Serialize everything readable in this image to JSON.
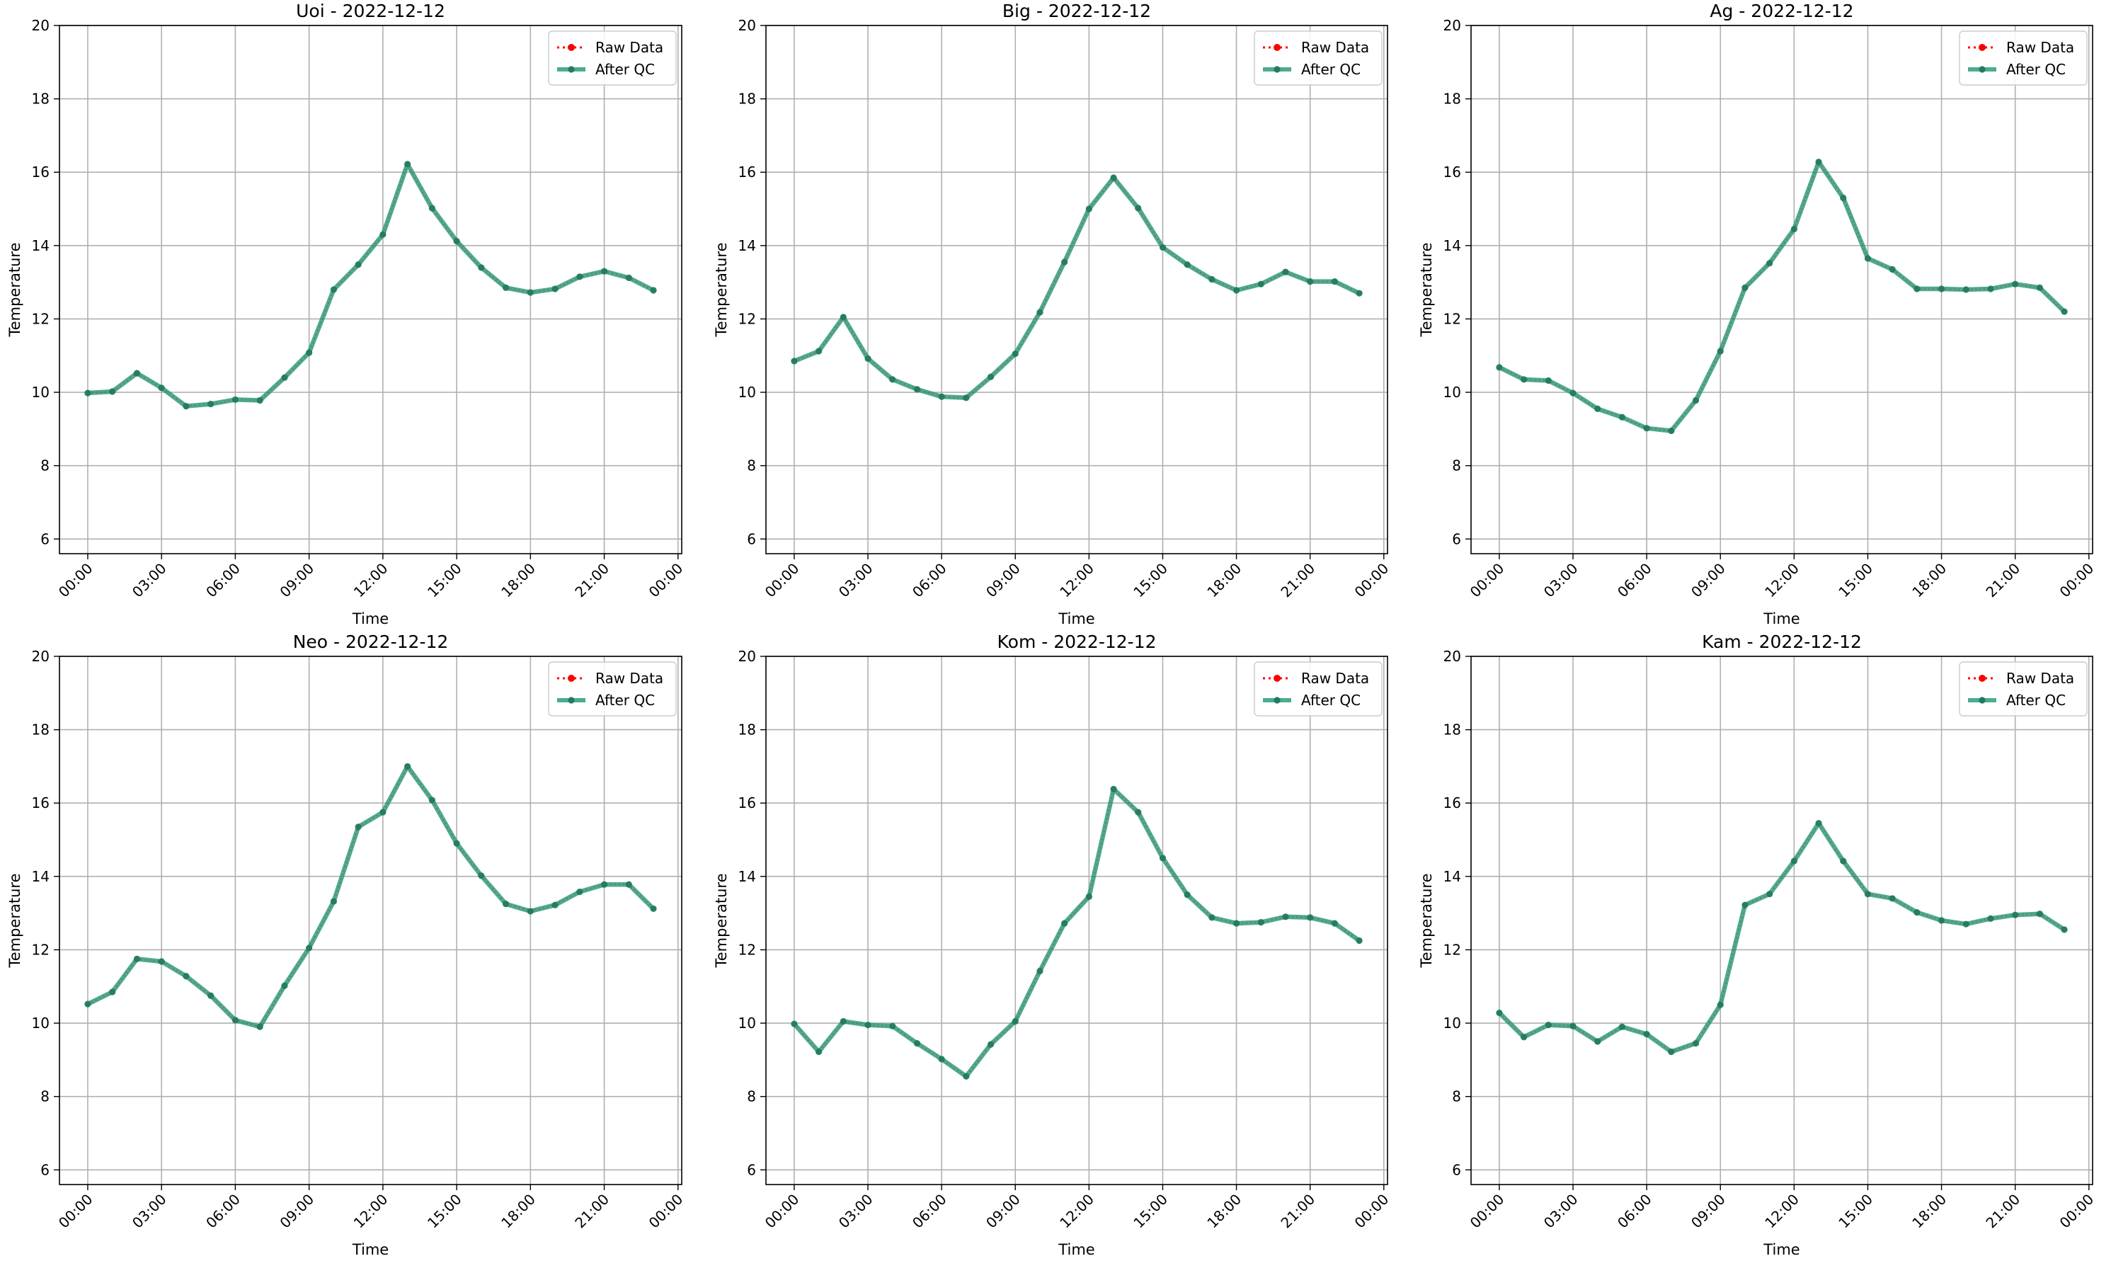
{
  "figure": {
    "background": "#ffffff"
  },
  "styles": {
    "raw_color": "#ff0000",
    "qc_color": "#2a9d7c",
    "qc_marker_color": "#237a62",
    "grid_color": "#b0b0b0"
  },
  "chart_data": [
    {
      "type": "line",
      "title": "Uoi - 2022-12-12",
      "xlabel": "Time",
      "ylabel": "Temperature",
      "ylim": [
        5.6,
        20
      ],
      "yticks": [
        6,
        8,
        10,
        12,
        14,
        16,
        18,
        20
      ],
      "xticks": [
        "00:00",
        "03:00",
        "06:00",
        "09:00",
        "12:00",
        "15:00",
        "18:00",
        "21:00",
        "00:00"
      ],
      "grid": true,
      "legend": "top-right",
      "x": [
        "00:00",
        "01:00",
        "02:00",
        "03:00",
        "04:00",
        "05:00",
        "06:00",
        "07:00",
        "08:00",
        "09:00",
        "10:00",
        "11:00",
        "12:00",
        "13:00",
        "14:00",
        "15:00",
        "16:00",
        "17:00",
        "18:00",
        "19:00",
        "20:00",
        "21:00",
        "22:00",
        "23:00"
      ],
      "series": [
        {
          "name": "Raw Data",
          "values": [
            9.98,
            10.02,
            10.52,
            10.12,
            9.62,
            9.68,
            9.8,
            9.78,
            10.4,
            11.08,
            12.8,
            13.48,
            14.3,
            16.22,
            15.02,
            14.12,
            13.4,
            12.85,
            12.72,
            12.82,
            13.15,
            13.3,
            13.12,
            12.78
          ]
        },
        {
          "name": "After QC",
          "values": [
            9.98,
            10.02,
            10.52,
            10.12,
            9.62,
            9.68,
            9.8,
            9.78,
            10.4,
            11.08,
            12.8,
            13.48,
            14.3,
            16.22,
            15.02,
            14.12,
            13.4,
            12.85,
            12.72,
            12.82,
            13.15,
            13.3,
            13.12,
            12.78
          ]
        }
      ]
    },
    {
      "type": "line",
      "title": "Big - 2022-12-12",
      "xlabel": "Time",
      "ylabel": "Temperature",
      "ylim": [
        5.6,
        20
      ],
      "yticks": [
        6,
        8,
        10,
        12,
        14,
        16,
        18,
        20
      ],
      "xticks": [
        "00:00",
        "03:00",
        "06:00",
        "09:00",
        "12:00",
        "15:00",
        "18:00",
        "21:00",
        "00:00"
      ],
      "grid": true,
      "legend": "top-right",
      "x": [
        "00:00",
        "01:00",
        "02:00",
        "03:00",
        "04:00",
        "05:00",
        "06:00",
        "07:00",
        "08:00",
        "09:00",
        "10:00",
        "11:00",
        "12:00",
        "13:00",
        "14:00",
        "15:00",
        "16:00",
        "17:00",
        "18:00",
        "19:00",
        "20:00",
        "21:00",
        "22:00",
        "23:00"
      ],
      "series": [
        {
          "name": "Raw Data",
          "values": [
            10.85,
            11.12,
            12.05,
            10.92,
            10.35,
            10.08,
            9.88,
            9.85,
            10.42,
            11.05,
            12.18,
            13.55,
            15.0,
            15.85,
            15.02,
            13.95,
            13.48,
            13.08,
            12.78,
            12.95,
            13.28,
            13.02,
            13.02,
            12.7
          ]
        },
        {
          "name": "After QC",
          "values": [
            10.85,
            11.12,
            12.05,
            10.92,
            10.35,
            10.08,
            9.88,
            9.85,
            10.42,
            11.05,
            12.18,
            13.55,
            15.0,
            15.85,
            15.02,
            13.95,
            13.48,
            13.08,
            12.78,
            12.95,
            13.28,
            13.02,
            13.02,
            12.7
          ]
        }
      ]
    },
    {
      "type": "line",
      "title": "Ag - 2022-12-12",
      "xlabel": "Time",
      "ylabel": "Temperature",
      "ylim": [
        5.6,
        20
      ],
      "yticks": [
        6,
        8,
        10,
        12,
        14,
        16,
        18,
        20
      ],
      "xticks": [
        "00:00",
        "03:00",
        "06:00",
        "09:00",
        "12:00",
        "15:00",
        "18:00",
        "21:00",
        "00:00"
      ],
      "grid": true,
      "legend": "top-right",
      "x": [
        "00:00",
        "01:00",
        "02:00",
        "03:00",
        "04:00",
        "05:00",
        "06:00",
        "07:00",
        "08:00",
        "09:00",
        "10:00",
        "11:00",
        "12:00",
        "13:00",
        "14:00",
        "15:00",
        "16:00",
        "17:00",
        "18:00",
        "19:00",
        "20:00",
        "21:00",
        "22:00",
        "23:00"
      ],
      "series": [
        {
          "name": "Raw Data",
          "values": [
            10.68,
            10.35,
            10.32,
            9.98,
            9.55,
            9.32,
            9.02,
            8.95,
            9.78,
            11.12,
            12.85,
            13.52,
            14.45,
            16.28,
            15.3,
            13.65,
            13.35,
            12.82,
            12.82,
            12.8,
            12.82,
            12.95,
            12.85,
            12.2
          ]
        },
        {
          "name": "After QC",
          "values": [
            10.68,
            10.35,
            10.32,
            9.98,
            9.55,
            9.32,
            9.02,
            8.95,
            9.78,
            11.12,
            12.85,
            13.52,
            14.45,
            16.28,
            15.3,
            13.65,
            13.35,
            12.82,
            12.82,
            12.8,
            12.82,
            12.95,
            12.85,
            12.2
          ]
        }
      ]
    },
    {
      "type": "line",
      "title": "Neo - 2022-12-12",
      "xlabel": "Time",
      "ylabel": "Temperature",
      "ylim": [
        5.6,
        20
      ],
      "yticks": [
        6,
        8,
        10,
        12,
        14,
        16,
        18,
        20
      ],
      "xticks": [
        "00:00",
        "03:00",
        "06:00",
        "09:00",
        "12:00",
        "15:00",
        "18:00",
        "21:00",
        "00:00"
      ],
      "grid": true,
      "legend": "top-right",
      "x": [
        "00:00",
        "01:00",
        "02:00",
        "03:00",
        "04:00",
        "05:00",
        "06:00",
        "07:00",
        "08:00",
        "09:00",
        "10:00",
        "11:00",
        "12:00",
        "13:00",
        "14:00",
        "15:00",
        "16:00",
        "17:00",
        "18:00",
        "19:00",
        "20:00",
        "21:00",
        "22:00",
        "23:00"
      ],
      "series": [
        {
          "name": "Raw Data",
          "values": [
            10.52,
            10.85,
            11.75,
            11.68,
            11.28,
            10.75,
            10.08,
            9.9,
            11.02,
            12.05,
            13.32,
            15.35,
            15.75,
            17.0,
            16.08,
            14.9,
            14.02,
            13.25,
            13.05,
            13.22,
            13.58,
            13.78,
            13.78,
            13.12
          ]
        },
        {
          "name": "After QC",
          "values": [
            10.52,
            10.85,
            11.75,
            11.68,
            11.28,
            10.75,
            10.08,
            9.9,
            11.02,
            12.05,
            13.32,
            15.35,
            15.75,
            17.0,
            16.08,
            14.9,
            14.02,
            13.25,
            13.05,
            13.22,
            13.58,
            13.78,
            13.78,
            13.12
          ]
        }
      ]
    },
    {
      "type": "line",
      "title": "Kom - 2022-12-12",
      "xlabel": "Time",
      "ylabel": "Temperature",
      "ylim": [
        5.6,
        20
      ],
      "yticks": [
        6,
        8,
        10,
        12,
        14,
        16,
        18,
        20
      ],
      "xticks": [
        "00:00",
        "03:00",
        "06:00",
        "09:00",
        "12:00",
        "15:00",
        "18:00",
        "21:00",
        "00:00"
      ],
      "grid": true,
      "legend": "top-right",
      "x": [
        "00:00",
        "01:00",
        "02:00",
        "03:00",
        "04:00",
        "05:00",
        "06:00",
        "07:00",
        "08:00",
        "09:00",
        "10:00",
        "11:00",
        "12:00",
        "13:00",
        "14:00",
        "15:00",
        "16:00",
        "17:00",
        "18:00",
        "19:00",
        "20:00",
        "21:00",
        "22:00",
        "23:00"
      ],
      "series": [
        {
          "name": "Raw Data",
          "values": [
            9.98,
            9.22,
            10.05,
            9.95,
            9.92,
            9.45,
            9.02,
            8.55,
            9.42,
            10.05,
            11.42,
            12.72,
            13.45,
            16.38,
            15.75,
            14.5,
            13.5,
            12.88,
            12.72,
            12.75,
            12.9,
            12.88,
            12.72,
            12.25
          ]
        },
        {
          "name": "After QC",
          "values": [
            9.98,
            9.22,
            10.05,
            9.95,
            9.92,
            9.45,
            9.02,
            8.55,
            9.42,
            10.05,
            11.42,
            12.72,
            13.45,
            16.38,
            15.75,
            14.5,
            13.5,
            12.88,
            12.72,
            12.75,
            12.9,
            12.88,
            12.72,
            12.25
          ]
        }
      ]
    },
    {
      "type": "line",
      "title": "Kam - 2022-12-12",
      "xlabel": "Time",
      "ylabel": "Temperature",
      "ylim": [
        5.6,
        20
      ],
      "yticks": [
        6,
        8,
        10,
        12,
        14,
        16,
        18,
        20
      ],
      "xticks": [
        "00:00",
        "03:00",
        "06:00",
        "09:00",
        "12:00",
        "15:00",
        "18:00",
        "21:00",
        "00:00"
      ],
      "grid": true,
      "legend": "top-right",
      "x": [
        "00:00",
        "01:00",
        "02:00",
        "03:00",
        "04:00",
        "05:00",
        "06:00",
        "07:00",
        "08:00",
        "09:00",
        "10:00",
        "11:00",
        "12:00",
        "13:00",
        "14:00",
        "15:00",
        "16:00",
        "17:00",
        "18:00",
        "19:00",
        "20:00",
        "21:00",
        "22:00",
        "23:00"
      ],
      "series": [
        {
          "name": "Raw Data",
          "values": [
            10.28,
            9.62,
            9.95,
            9.92,
            9.5,
            9.9,
            9.7,
            9.22,
            9.45,
            10.5,
            13.22,
            13.52,
            14.42,
            15.45,
            14.42,
            13.52,
            13.4,
            13.02,
            12.8,
            12.7,
            12.85,
            12.95,
            12.98,
            12.55
          ]
        },
        {
          "name": "After QC",
          "values": [
            10.28,
            9.62,
            9.95,
            9.92,
            9.5,
            9.9,
            9.7,
            9.22,
            9.45,
            10.5,
            13.22,
            13.52,
            14.42,
            15.45,
            14.42,
            13.52,
            13.4,
            13.02,
            12.8,
            12.7,
            12.85,
            12.95,
            12.98,
            12.55
          ]
        }
      ]
    }
  ]
}
